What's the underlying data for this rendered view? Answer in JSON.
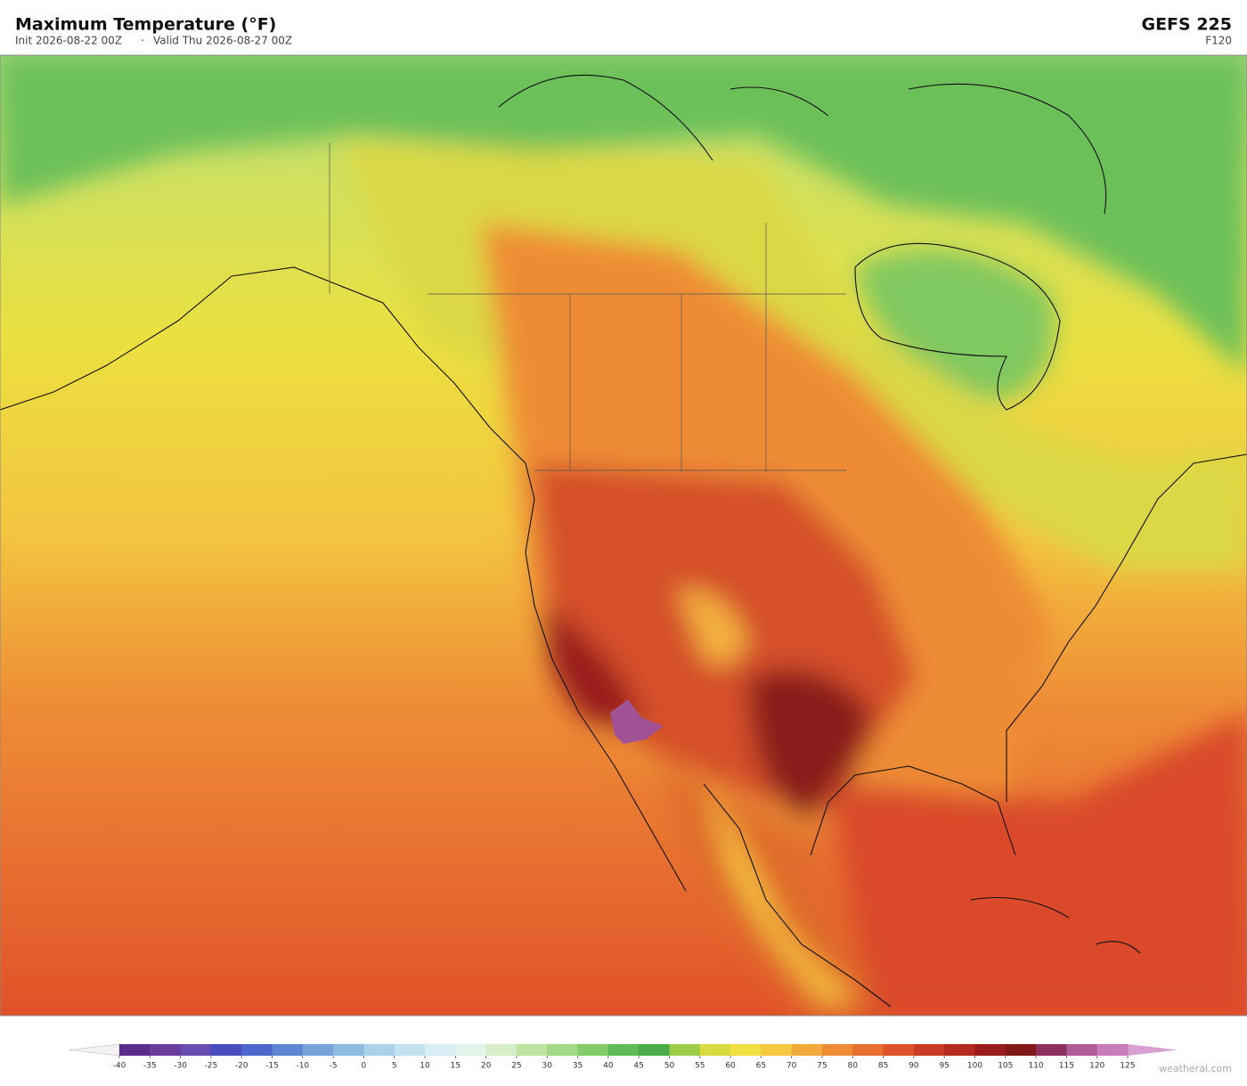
{
  "header": {
    "title": "Maximum Temperature  (°F)",
    "init": "Init 2026-08-22 00Z",
    "separator": "·",
    "valid": "Valid Thu 2026-08-27 00Z",
    "model": "GEFS  225",
    "forecast_hour": "F120"
  },
  "colorbar": {
    "ticks": [
      -40,
      -35,
      -30,
      -25,
      -20,
      -15,
      -10,
      -5,
      0,
      5,
      10,
      15,
      20,
      25,
      30,
      35,
      40,
      45,
      50,
      55,
      60,
      65,
      70,
      75,
      80,
      85,
      90,
      95,
      100,
      105,
      110,
      115,
      120,
      125
    ],
    "colors": [
      "#5a2d8c",
      "#6a3c9c",
      "#6a4db0",
      "#4a4cbf",
      "#4f66cc",
      "#5f84d4",
      "#79a2da",
      "#8fbbe2",
      "#a9d2ea",
      "#c2e2f0",
      "#d8ecf4",
      "#e4f4ea",
      "#d6eec8",
      "#bfe3a3",
      "#a3d886",
      "#84cc6a",
      "#5fbb55",
      "#4aad4a",
      "#9ccc48",
      "#d6dc40",
      "#f2e040",
      "#f6c840",
      "#f3aa3c",
      "#ee8c36",
      "#e96f30",
      "#e0522a",
      "#cc3b24",
      "#b52a20",
      "#9a1c1c",
      "#821818",
      "#8c3060",
      "#b05c96",
      "#c87cba"
    ],
    "under_color": "#f2f2f2",
    "over_color": "#d8a0d0"
  },
  "footer": {
    "watermark": "weatherai.com"
  }
}
